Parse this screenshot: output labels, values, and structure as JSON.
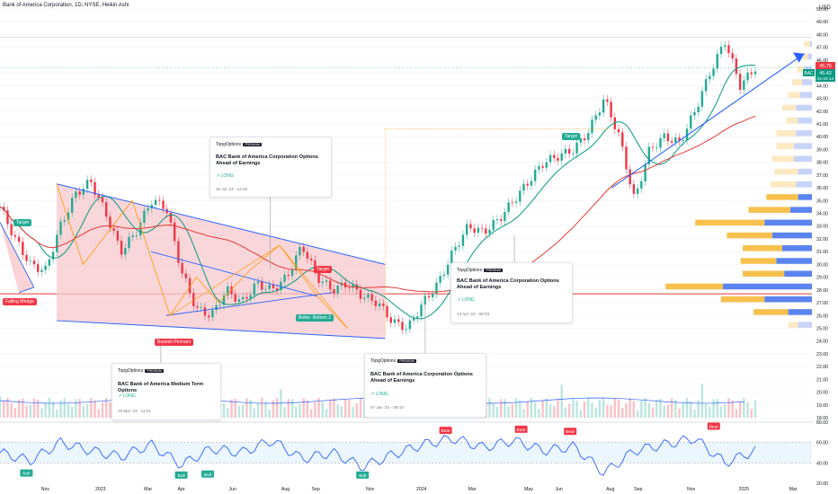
{
  "header": {
    "title": "Bank of America Corporation, 1D, NYSE, Heikin Ashi",
    "currency": "USD"
  },
  "chart_data": {
    "type": "candlestick",
    "symbol": "BAC",
    "price_axis": {
      "min": 18,
      "max": 50,
      "ticks": [
        50,
        49,
        48,
        47,
        46,
        45,
        44,
        43,
        42,
        41,
        40,
        39,
        38,
        37,
        36,
        35,
        34,
        33,
        32,
        31,
        30,
        29,
        28,
        27,
        26,
        25,
        24,
        23,
        22,
        21,
        20,
        19,
        18
      ]
    },
    "time_axis": {
      "labels": [
        "Nov",
        "2023",
        "Mar",
        "Apr",
        "Jun",
        "Aug",
        "Sep",
        "Nov",
        "2024",
        "Mar",
        "May",
        "Jun",
        "Aug",
        "Sep",
        "Nov",
        "2025",
        "Mar"
      ]
    },
    "price_tags": {
      "high": "45.75",
      "symbol": "BAC",
      "last": "45.42",
      "countdown": "01:02:14"
    },
    "close_series": {
      "t": [
        0,
        0.02,
        0.04,
        0.06,
        0.08,
        0.1,
        0.12,
        0.14,
        0.16,
        0.18,
        0.2,
        0.22,
        0.24,
        0.26,
        0.28,
        0.3,
        0.32,
        0.34,
        0.36,
        0.38,
        0.4,
        0.42,
        0.44,
        0.46,
        0.48,
        0.5,
        0.52,
        0.54,
        0.56,
        0.58,
        0.6,
        0.62,
        0.64,
        0.66,
        0.68,
        0.7,
        0.72,
        0.74,
        0.76,
        0.78,
        0.8,
        0.82,
        0.84,
        0.86,
        0.88,
        0.9,
        0.92,
        0.94,
        0.96,
        0.98,
        1
      ],
      "close": [
        34.5,
        32,
        30,
        29.5,
        33,
        35.5,
        36.5,
        34,
        31,
        32.5,
        35,
        34.5,
        29.5,
        26.5,
        26,
        28,
        27,
        28.5,
        28,
        29,
        31.5,
        29,
        28,
        28.5,
        27.5,
        27,
        25.5,
        25,
        27,
        28.5,
        31,
        33,
        32.5,
        33.5,
        35,
        36.5,
        38,
        38.5,
        39,
        40.5,
        43,
        40,
        35,
        39,
        40,
        39.5,
        42,
        45,
        47.5,
        44,
        45.4
      ]
    },
    "volume_profile": {
      "price_bins": [
        47,
        46,
        45,
        44,
        43,
        42,
        41,
        40,
        39,
        38,
        37,
        36,
        35,
        34,
        33,
        32,
        31,
        30,
        29,
        28,
        27,
        26,
        25
      ],
      "up_volume": [
        6,
        5,
        7,
        10,
        12,
        14,
        12,
        20,
        18,
        22,
        24,
        26,
        32,
        42,
        70,
        46,
        40,
        36,
        42,
        58,
        44,
        35,
        10
      ],
      "down_volume": [
        2,
        4,
        8,
        10,
        12,
        16,
        14,
        16,
        18,
        18,
        14,
        16,
        14,
        22,
        48,
        40,
        30,
        36,
        28,
        90,
        48,
        24,
        14
      ]
    },
    "patterns": [
      {
        "label": "Falling Wedge",
        "color": "#f23645"
      },
      {
        "label": "Bearish Pennant",
        "color": "#f23645"
      },
      {
        "label": "Target",
        "color": "#22ab94"
      },
      {
        "label": "Target",
        "color": "#f23645"
      },
      {
        "label": "Target",
        "color": "#22ab94"
      },
      {
        "label": "Bottom",
        "color": "#22ab94"
      },
      {
        "label": "Bottom 2",
        "color": "#22ab94"
      }
    ],
    "rsi": {
      "levels": [
        60.0,
        40.0
      ],
      "t": [
        0,
        0.04,
        0.08,
        0.12,
        0.16,
        0.2,
        0.24,
        0.28,
        0.32,
        0.36,
        0.4,
        0.44,
        0.48,
        0.52,
        0.56,
        0.6,
        0.64,
        0.68,
        0.72,
        0.76,
        0.8,
        0.84,
        0.88,
        0.92,
        0.96,
        1
      ],
      "v": [
        50,
        42,
        60,
        52,
        46,
        58,
        38,
        54,
        50,
        62,
        44,
        50,
        36,
        48,
        58,
        64,
        55,
        62,
        52,
        56,
        30,
        52,
        58,
        64,
        40,
        52
      ],
      "signals": [
        "Bull",
        "Bull",
        "Bull",
        "Bull",
        "Bear",
        "Bear",
        "Bear",
        "Bear"
      ]
    }
  },
  "ideas": [
    {
      "brand": "TopgOptions",
      "badge": "PREMIUM",
      "title": "BAC Bank of America Corporation Options Ahead of Earnings",
      "side": "LONG",
      "date": "15 Jul '23 - 12:46"
    },
    {
      "brand": "TopgOptions",
      "badge": "PREMIUM",
      "title": "BAC Bank of America Corporation Options Ahead of Earnings",
      "side": "LONG",
      "date": "13 Apr '24 - 08:03"
    },
    {
      "brand": "TopgOptions",
      "badge": "PREMIUM",
      "title": "BAC Bank of America Medium Term Options",
      "side": "LONG",
      "date": "19 Mar '23 - 11:01"
    },
    {
      "brand": "TopgOptions",
      "badge": "PREMIUM",
      "title": "BAC Bank of America Corporation Options Ahead of Earnings",
      "side": "LONG",
      "date": "07 Jan '24 - 06:43"
    }
  ],
  "colors": {
    "up": "#22ab94",
    "down": "#f23645",
    "blue": "#2962ff",
    "ma_green": "#089981",
    "ma_red": "#e53935",
    "wedge_fill": "#f7c8cc",
    "vp_up": "#f8c14d",
    "vp_down": "#5b84f0",
    "rsi": "#2962ff"
  }
}
